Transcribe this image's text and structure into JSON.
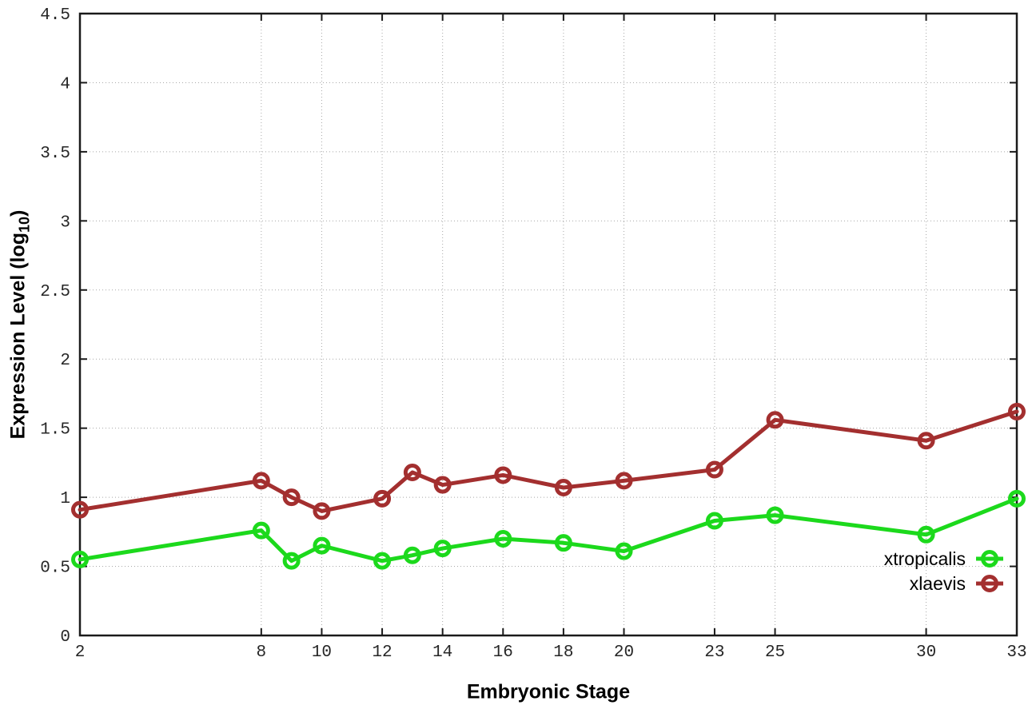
{
  "chart_data": {
    "type": "line",
    "title": "",
    "xlabel": "Embryonic Stage",
    "ylabel": {
      "pre": "Expression Level (log",
      "sub": "10",
      "post": ")"
    },
    "x": [
      2,
      8,
      9,
      10,
      12,
      13,
      14,
      16,
      18,
      20,
      23,
      25,
      30,
      33
    ],
    "series": [
      {
        "name": "xtropicalis",
        "color": "#1cd91c",
        "values": [
          0.55,
          0.76,
          0.54,
          0.65,
          0.54,
          0.58,
          0.63,
          0.7,
          0.67,
          0.61,
          0.83,
          0.87,
          0.73,
          0.99
        ]
      },
      {
        "name": "xlaevis",
        "color": "#a32f2f",
        "values": [
          0.91,
          1.12,
          1.0,
          0.9,
          0.99,
          1.18,
          1.09,
          1.16,
          1.07,
          1.12,
          1.2,
          1.56,
          1.41,
          1.62
        ]
      }
    ],
    "xlim": [
      2,
      33
    ],
    "ylim": [
      0,
      4.5
    ],
    "xticks": {
      "values": [
        2,
        8,
        10,
        12,
        14,
        16,
        18,
        20,
        23,
        25,
        30,
        33
      ],
      "labels": [
        "2",
        "8",
        "10",
        "12",
        "14",
        "16",
        "18",
        "20",
        "23",
        "25",
        "30",
        "33"
      ]
    },
    "yticks": {
      "values": [
        0,
        0.5,
        1,
        1.5,
        2,
        2.5,
        3,
        3.5,
        4,
        4.5
      ],
      "labels": [
        "0",
        "0.5",
        "1",
        "1.5",
        "2",
        "2.5",
        "3",
        "3.5",
        "4",
        "4.5"
      ]
    },
    "grid": true,
    "legend_position": "inside-bottom-right"
  }
}
